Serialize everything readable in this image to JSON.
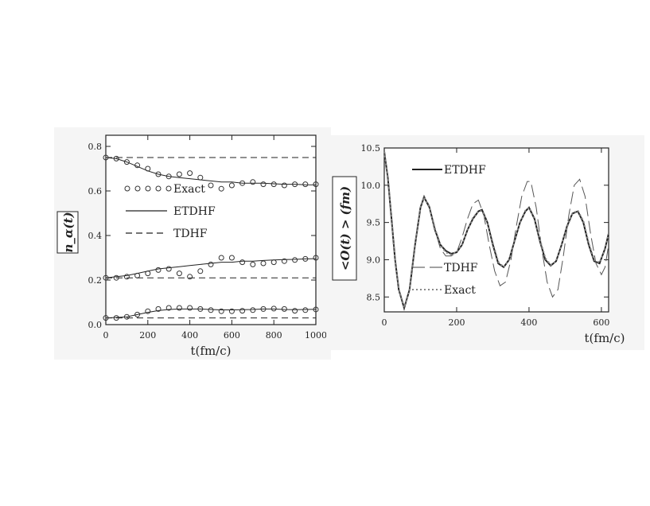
{
  "chart_data": [
    {
      "type": "line",
      "panel": "left",
      "ylabel": "n_α(t)",
      "xlabel": "t(fm/c)",
      "xlim": [
        0,
        1000
      ],
      "ylim": [
        0.0,
        0.85
      ],
      "x_ticks": [
        "0",
        "200",
        "400",
        "600",
        "800",
        "1000"
      ],
      "y_ticks": [
        "0.0",
        "0.2",
        "0.4",
        "0.6",
        "0.8"
      ],
      "legend": [
        {
          "label": "Exact",
          "style": "circles"
        },
        {
          "label": "ETDHF",
          "style": "solid"
        },
        {
          "label": "TDHF",
          "style": "dashed"
        }
      ],
      "series": [
        {
          "name": "TDHF",
          "style": "dashed",
          "group": "upper",
          "x": [
            0,
            1000
          ],
          "y": [
            0.75,
            0.75
          ]
        },
        {
          "name": "TDHF",
          "style": "dashed",
          "group": "middle",
          "x": [
            0,
            1000
          ],
          "y": [
            0.21,
            0.21
          ]
        },
        {
          "name": "TDHF",
          "style": "dashed",
          "group": "lower",
          "x": [
            0,
            1000
          ],
          "y": [
            0.03,
            0.03
          ]
        },
        {
          "name": "ETDHF",
          "style": "solid",
          "group": "upper",
          "x": [
            0,
            50,
            100,
            150,
            200,
            250,
            300,
            350,
            400,
            450,
            500,
            550,
            600,
            650,
            700,
            750,
            800,
            850,
            900,
            950,
            1000
          ],
          "y": [
            0.75,
            0.745,
            0.73,
            0.71,
            0.69,
            0.675,
            0.665,
            0.66,
            0.655,
            0.65,
            0.645,
            0.64,
            0.64,
            0.635,
            0.635,
            0.635,
            0.632,
            0.63,
            0.63,
            0.628,
            0.627
          ]
        },
        {
          "name": "ETDHF",
          "style": "solid",
          "group": "middle",
          "x": [
            0,
            50,
            100,
            150,
            200,
            250,
            300,
            350,
            400,
            450,
            500,
            550,
            600,
            650,
            700,
            750,
            800,
            850,
            900,
            950,
            1000
          ],
          "y": [
            0.21,
            0.215,
            0.22,
            0.23,
            0.24,
            0.25,
            0.255,
            0.26,
            0.265,
            0.27,
            0.275,
            0.28,
            0.28,
            0.285,
            0.285,
            0.288,
            0.29,
            0.292,
            0.293,
            0.295,
            0.296
          ]
        },
        {
          "name": "ETDHF",
          "style": "solid",
          "group": "lower",
          "x": [
            0,
            50,
            100,
            150,
            200,
            250,
            300,
            350,
            400,
            450,
            500,
            550,
            600,
            650,
            700,
            750,
            800,
            850,
            900,
            950,
            1000
          ],
          "y": [
            0.03,
            0.032,
            0.035,
            0.045,
            0.055,
            0.063,
            0.068,
            0.07,
            0.07,
            0.07,
            0.068,
            0.066,
            0.066,
            0.067,
            0.068,
            0.07,
            0.07,
            0.068,
            0.067,
            0.068,
            0.069
          ]
        },
        {
          "name": "Exact",
          "style": "circles",
          "group": "upper",
          "x": [
            0,
            50,
            100,
            150,
            200,
            250,
            300,
            350,
            400,
            450,
            500,
            550,
            600,
            650,
            700,
            750,
            800,
            850,
            900,
            950,
            1000
          ],
          "y": [
            0.75,
            0.745,
            0.73,
            0.715,
            0.7,
            0.675,
            0.665,
            0.675,
            0.68,
            0.66,
            0.625,
            0.61,
            0.625,
            0.635,
            0.64,
            0.63,
            0.63,
            0.625,
            0.63,
            0.63,
            0.63
          ]
        },
        {
          "name": "Exact",
          "style": "circles",
          "group": "middle",
          "x": [
            0,
            50,
            100,
            150,
            200,
            250,
            300,
            350,
            400,
            450,
            500,
            550,
            600,
            650,
            700,
            750,
            800,
            850,
            900,
            950,
            1000
          ],
          "y": [
            0.21,
            0.21,
            0.215,
            0.22,
            0.23,
            0.245,
            0.25,
            0.23,
            0.215,
            0.24,
            0.27,
            0.3,
            0.3,
            0.28,
            0.27,
            0.275,
            0.28,
            0.285,
            0.29,
            0.295,
            0.3
          ]
        },
        {
          "name": "Exact",
          "style": "circles",
          "group": "lower",
          "x": [
            0,
            50,
            100,
            150,
            200,
            250,
            300,
            350,
            400,
            450,
            500,
            550,
            600,
            650,
            700,
            750,
            800,
            850,
            900,
            950,
            1000
          ],
          "y": [
            0.03,
            0.03,
            0.035,
            0.045,
            0.06,
            0.07,
            0.075,
            0.075,
            0.075,
            0.07,
            0.065,
            0.06,
            0.06,
            0.062,
            0.065,
            0.07,
            0.072,
            0.07,
            0.062,
            0.065,
            0.068
          ]
        }
      ]
    },
    {
      "type": "line",
      "panel": "right",
      "ylabel": "<O(t) > (fm)",
      "xlabel": "t(fm/c)",
      "xlim": [
        0,
        620
      ],
      "ylim": [
        8.3,
        10.5
      ],
      "x_ticks": [
        "0",
        "200",
        "400",
        "600"
      ],
      "y_ticks": [
        "8.5",
        "9.0",
        "9.5",
        "10.0",
        "10.5"
      ],
      "legend": [
        {
          "label": "ETDHF",
          "style": "solid"
        },
        {
          "label": "TDHF",
          "style": "long-dashed"
        },
        {
          "label": "Exact",
          "style": "dotted"
        }
      ],
      "series": [
        {
          "name": "ETDHF",
          "style": "solid",
          "x": [
            0,
            10,
            20,
            30,
            40,
            55,
            70,
            85,
            100,
            110,
            125,
            140,
            155,
            170,
            185,
            200,
            215,
            230,
            245,
            260,
            270,
            285,
            300,
            315,
            330,
            345,
            360,
            375,
            390,
            400,
            415,
            430,
            445,
            460,
            475,
            490,
            505,
            520,
            535,
            550,
            565,
            580,
            595,
            610,
            620
          ],
          "y": [
            10.45,
            10.1,
            9.55,
            9.0,
            8.6,
            8.35,
            8.6,
            9.2,
            9.7,
            9.84,
            9.7,
            9.4,
            9.2,
            9.12,
            9.08,
            9.1,
            9.2,
            9.4,
            9.55,
            9.65,
            9.67,
            9.5,
            9.2,
            8.95,
            8.9,
            9.0,
            9.25,
            9.5,
            9.65,
            9.7,
            9.55,
            9.25,
            9.0,
            8.92,
            8.98,
            9.2,
            9.45,
            9.62,
            9.65,
            9.5,
            9.2,
            8.98,
            8.95,
            9.15,
            9.35
          ]
        },
        {
          "name": "TDHF",
          "style": "long-dashed",
          "x": [
            0,
            10,
            20,
            30,
            40,
            55,
            70,
            85,
            100,
            110,
            125,
            140,
            155,
            170,
            185,
            200,
            215,
            230,
            245,
            260,
            275,
            290,
            305,
            320,
            335,
            350,
            365,
            380,
            395,
            405,
            420,
            435,
            450,
            465,
            480,
            495,
            510,
            525,
            540,
            555,
            570,
            585,
            600,
            610,
            620
          ],
          "y": [
            10.45,
            10.1,
            9.55,
            9.0,
            8.6,
            8.35,
            8.6,
            9.2,
            9.72,
            9.86,
            9.72,
            9.4,
            9.15,
            9.05,
            9.05,
            9.1,
            9.3,
            9.55,
            9.75,
            9.8,
            9.6,
            9.2,
            8.85,
            8.65,
            8.7,
            9.0,
            9.45,
            9.85,
            10.05,
            10.05,
            9.7,
            9.15,
            8.7,
            8.5,
            8.6,
            9.05,
            9.6,
            10.0,
            10.08,
            9.85,
            9.35,
            8.95,
            8.8,
            8.9,
            9.2
          ]
        },
        {
          "name": "Exact",
          "style": "dotted",
          "x": [
            0,
            10,
            20,
            30,
            40,
            55,
            70,
            85,
            100,
            110,
            125,
            140,
            155,
            170,
            185,
            200,
            215,
            230,
            245,
            260,
            270,
            285,
            300,
            315,
            330,
            345,
            360,
            375,
            390,
            400,
            415,
            430,
            445,
            460,
            475,
            490,
            505,
            520,
            535,
            550,
            565,
            580,
            595,
            610,
            620
          ],
          "y": [
            10.45,
            10.1,
            9.55,
            9.0,
            8.6,
            8.36,
            8.6,
            9.2,
            9.7,
            9.84,
            9.7,
            9.42,
            9.2,
            9.1,
            9.07,
            9.1,
            9.2,
            9.4,
            9.56,
            9.65,
            9.66,
            9.5,
            9.22,
            8.97,
            8.9,
            9.0,
            9.25,
            9.5,
            9.66,
            9.7,
            9.56,
            9.27,
            9.02,
            8.93,
            8.98,
            9.2,
            9.44,
            9.62,
            9.66,
            9.52,
            9.22,
            9.0,
            8.96,
            9.14,
            9.35
          ]
        }
      ]
    }
  ]
}
